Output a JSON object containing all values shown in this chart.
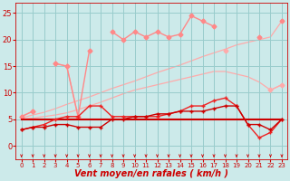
{
  "x": [
    0,
    1,
    2,
    3,
    4,
    5,
    6,
    7,
    8,
    9,
    10,
    11,
    12,
    13,
    14,
    15,
    16,
    17,
    18,
    19,
    20,
    21,
    22,
    23
  ],
  "bg_color": "#cceaea",
  "grid_color": "#99cccc",
  "line_envelope_upper": {
    "y": [
      5.2,
      5.8,
      6.3,
      7.0,
      7.8,
      8.5,
      9.2,
      10.0,
      10.8,
      11.5,
      12.2,
      13.0,
      13.8,
      14.5,
      15.2,
      16.0,
      16.8,
      17.5,
      18.2,
      19.0,
      19.5,
      20.0,
      20.5,
      23.5
    ],
    "color": "#ffaaaa",
    "lw": 0.9
  },
  "line_envelope_lower": {
    "y": [
      5.0,
      5.2,
      5.5,
      5.8,
      6.2,
      6.8,
      7.5,
      8.2,
      9.0,
      9.8,
      10.5,
      11.0,
      11.5,
      12.0,
      12.5,
      13.0,
      13.5,
      14.0,
      14.0,
      13.5,
      13.0,
      12.0,
      10.5,
      11.5
    ],
    "color": "#ffaaaa",
    "lw": 0.9
  },
  "line_rafales_upper": {
    "y": [
      5.5,
      6.5,
      null,
      15.5,
      15.0,
      5.5,
      18.0,
      null,
      21.5,
      20.0,
      21.5,
      20.5,
      21.5,
      20.5,
      21.0,
      24.5,
      23.5,
      22.5,
      null,
      null,
      null,
      20.5,
      null,
      23.5
    ],
    "color": "#ff8888",
    "lw": 1.0,
    "marker": "D",
    "ms": 2.5
  },
  "line_rafales_lower": {
    "y": [
      5.5,
      6.5,
      null,
      15.5,
      15.0,
      5.5,
      null,
      null,
      null,
      null,
      null,
      null,
      null,
      null,
      null,
      null,
      null,
      null,
      18.0,
      null,
      null,
      null,
      10.5,
      11.5
    ],
    "color": "#ffaaaa",
    "lw": 0.9,
    "marker": "D",
    "ms": 2.5
  },
  "line_flat": {
    "y": [
      5.0,
      5.0,
      5.0,
      5.0,
      5.0,
      5.0,
      5.0,
      5.0,
      5.0,
      5.0,
      5.0,
      5.0,
      5.0,
      5.0,
      5.0,
      5.0,
      5.0,
      5.0,
      5.0,
      5.0,
      5.0,
      5.0,
      5.0,
      5.0
    ],
    "color": "#cc0000",
    "lw": 1.5
  },
  "line_wind1": {
    "y": [
      3.0,
      3.5,
      4.0,
      5.0,
      5.5,
      5.5,
      7.5,
      7.5,
      5.5,
      5.5,
      5.5,
      5.5,
      5.5,
      6.0,
      6.5,
      7.5,
      7.5,
      8.5,
      9.0,
      7.5,
      4.0,
      1.5,
      2.5,
      5.0
    ],
    "color": "#ee2222",
    "lw": 1.0,
    "marker": "+",
    "ms": 3.5
  },
  "line_wind2": {
    "y": [
      3.0,
      3.5,
      3.5,
      4.0,
      4.0,
      3.5,
      3.5,
      3.5,
      5.0,
      5.0,
      5.5,
      5.5,
      6.0,
      6.0,
      6.5,
      6.5,
      6.5,
      7.0,
      7.5,
      7.5,
      4.0,
      4.0,
      3.0,
      5.0
    ],
    "color": "#cc0000",
    "lw": 1.0,
    "marker": "+",
    "ms": 3.5
  },
  "xlabel": "Vent moyen/en rafales ( km/h )",
  "xlabel_color": "#cc0000",
  "xlabel_fontsize": 7,
  "ylabel_ticks": [
    0,
    5,
    10,
    15,
    20,
    25
  ],
  "xtick_labels": [
    "0",
    "1",
    "2",
    "3",
    "4",
    "5",
    "6",
    "7",
    "8",
    "9",
    "10",
    "11",
    "12",
    "13",
    "14",
    "15",
    "16",
    "17",
    "18",
    "19",
    "20",
    "21",
    "22",
    "23"
  ],
  "xlim": [
    -0.5,
    23.5
  ],
  "ylim": [
    -2.5,
    27
  ]
}
